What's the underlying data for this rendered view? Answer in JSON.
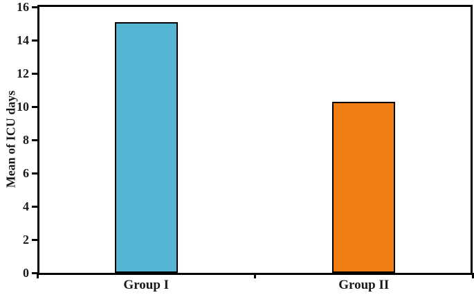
{
  "figure": {
    "background": "#ffffff",
    "frame_color": "#000000"
  },
  "chart_data": {
    "type": "bar",
    "categories": [
      "Group I",
      "Group II"
    ],
    "values": [
      15.1,
      10.3
    ],
    "title": "",
    "xlabel": "",
    "ylabel": "Mean of ICU days",
    "ylim": [
      0,
      16
    ],
    "ytick_step": 2,
    "ytick_labels": [
      "0",
      "2",
      "4",
      "6",
      "8",
      "10",
      "12",
      "14",
      "16"
    ],
    "bar_colors": [
      "#55b6d4",
      "#ef7d13"
    ],
    "bar_border_color": "#000000",
    "grid": false,
    "legend": "none"
  }
}
